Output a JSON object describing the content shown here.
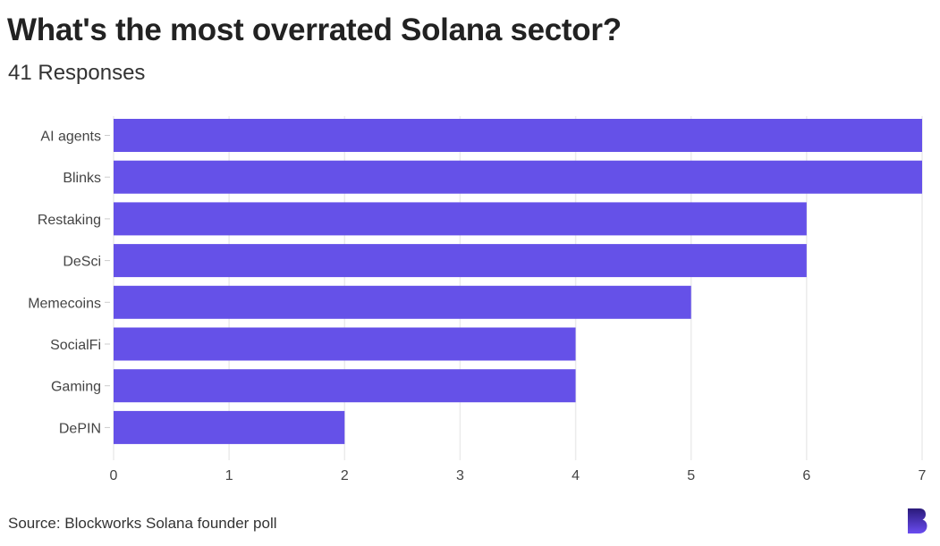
{
  "title": "What's the most overrated Solana sector?",
  "subtitle": "41 Responses",
  "source": "Source: Blockworks Solana founder poll",
  "logo_text": "B",
  "colors": {
    "bar": "#6551E8",
    "grid": "#ebebeb",
    "logo": "#4a2fc0"
  },
  "chart_data": {
    "type": "bar",
    "orientation": "horizontal",
    "categories": [
      "AI agents",
      "Blinks",
      "Restaking",
      "DeSci",
      "Memecoins",
      "SocialFi",
      "Gaming",
      "DePIN"
    ],
    "values": [
      7,
      7,
      6,
      6,
      5,
      4,
      4,
      2
    ],
    "xlim": [
      0,
      7
    ],
    "xticks": [
      "0",
      "1",
      "2",
      "3",
      "4",
      "5",
      "6",
      "7"
    ],
    "grid": true,
    "title": "What's the most overrated Solana sector?",
    "xlabel": "",
    "ylabel": ""
  }
}
